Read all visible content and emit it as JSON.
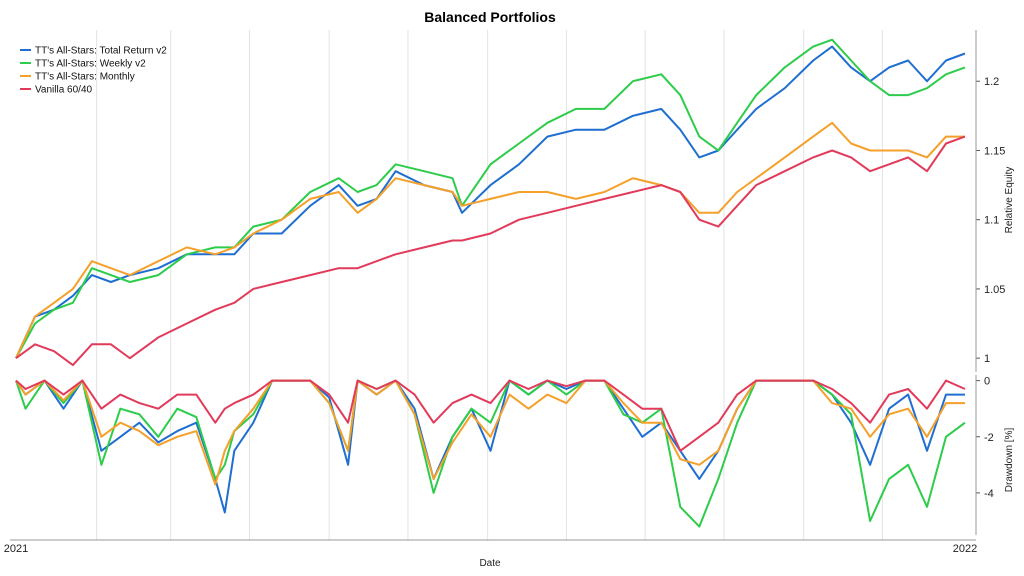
{
  "chart_data": [
    {
      "type": "line",
      "title": "Balanced Portfolios",
      "xlabel": "Date",
      "ylabel": "Relative Equity",
      "xlim": [
        "2021",
        "2022"
      ],
      "x_ticks": [
        "2021",
        "2022"
      ],
      "ylim": [
        0.99,
        1.237
      ],
      "y_ticks": [
        "1",
        "1.05",
        "1.1",
        "1.15",
        "1.2"
      ],
      "y_tick_values": [
        1,
        1.05,
        1.1,
        1.15,
        1.2
      ],
      "legend_position": "top-left",
      "grid": "vertical",
      "series": [
        {
          "name": "TT's All-Stars: Total Return v2",
          "color": "#1f6fd1",
          "x": [
            0,
            0.02,
            0.04,
            0.06,
            0.08,
            0.1,
            0.12,
            0.15,
            0.18,
            0.21,
            0.23,
            0.25,
            0.28,
            0.31,
            0.34,
            0.36,
            0.38,
            0.4,
            0.43,
            0.46,
            0.47,
            0.5,
            0.53,
            0.56,
            0.59,
            0.62,
            0.65,
            0.68,
            0.7,
            0.72,
            0.74,
            0.76,
            0.78,
            0.81,
            0.84,
            0.86,
            0.88,
            0.9,
            0.92,
            0.94,
            0.96,
            0.98,
            1
          ],
          "y": [
            1.0,
            1.03,
            1.035,
            1.045,
            1.06,
            1.055,
            1.06,
            1.065,
            1.075,
            1.075,
            1.075,
            1.09,
            1.09,
            1.11,
            1.125,
            1.11,
            1.115,
            1.135,
            1.125,
            1.12,
            1.105,
            1.125,
            1.14,
            1.16,
            1.165,
            1.165,
            1.175,
            1.18,
            1.165,
            1.145,
            1.15,
            1.165,
            1.18,
            1.195,
            1.215,
            1.225,
            1.21,
            1.2,
            1.21,
            1.215,
            1.2,
            1.215,
            1.22
          ]
        },
        {
          "name": "TT's All-Stars: Weekly v2",
          "color": "#2dcc4a",
          "x": [
            0,
            0.02,
            0.04,
            0.06,
            0.08,
            0.1,
            0.12,
            0.15,
            0.18,
            0.21,
            0.23,
            0.25,
            0.28,
            0.31,
            0.34,
            0.36,
            0.38,
            0.4,
            0.43,
            0.46,
            0.47,
            0.5,
            0.53,
            0.56,
            0.59,
            0.62,
            0.65,
            0.68,
            0.7,
            0.72,
            0.74,
            0.76,
            0.78,
            0.81,
            0.84,
            0.86,
            0.88,
            0.9,
            0.92,
            0.94,
            0.96,
            0.98,
            1
          ],
          "y": [
            1.0,
            1.025,
            1.035,
            1.04,
            1.065,
            1.06,
            1.055,
            1.06,
            1.075,
            1.08,
            1.08,
            1.095,
            1.1,
            1.12,
            1.13,
            1.12,
            1.125,
            1.14,
            1.135,
            1.13,
            1.11,
            1.14,
            1.155,
            1.17,
            1.18,
            1.18,
            1.2,
            1.205,
            1.19,
            1.16,
            1.15,
            1.17,
            1.19,
            1.21,
            1.225,
            1.23,
            1.215,
            1.2,
            1.19,
            1.19,
            1.195,
            1.205,
            1.21
          ]
        },
        {
          "name": "TT's All-Stars: Monthly",
          "color": "#f5a02a",
          "x": [
            0,
            0.02,
            0.04,
            0.06,
            0.08,
            0.1,
            0.12,
            0.15,
            0.18,
            0.21,
            0.23,
            0.25,
            0.28,
            0.31,
            0.34,
            0.36,
            0.38,
            0.4,
            0.43,
            0.46,
            0.47,
            0.5,
            0.53,
            0.56,
            0.59,
            0.62,
            0.65,
            0.68,
            0.7,
            0.72,
            0.74,
            0.76,
            0.78,
            0.81,
            0.84,
            0.86,
            0.88,
            0.9,
            0.92,
            0.94,
            0.96,
            0.98,
            1
          ],
          "y": [
            1.0,
            1.03,
            1.04,
            1.05,
            1.07,
            1.065,
            1.06,
            1.07,
            1.08,
            1.075,
            1.08,
            1.09,
            1.1,
            1.115,
            1.12,
            1.105,
            1.115,
            1.13,
            1.125,
            1.12,
            1.11,
            1.115,
            1.12,
            1.12,
            1.115,
            1.12,
            1.13,
            1.125,
            1.12,
            1.105,
            1.105,
            1.12,
            1.13,
            1.145,
            1.16,
            1.17,
            1.155,
            1.15,
            1.15,
            1.15,
            1.145,
            1.16,
            1.16
          ]
        },
        {
          "name": "Vanilla 60/40",
          "color": "#e23a5a",
          "x": [
            0,
            0.02,
            0.04,
            0.06,
            0.08,
            0.1,
            0.12,
            0.15,
            0.18,
            0.21,
            0.23,
            0.25,
            0.28,
            0.31,
            0.34,
            0.36,
            0.38,
            0.4,
            0.43,
            0.46,
            0.47,
            0.5,
            0.53,
            0.56,
            0.59,
            0.62,
            0.65,
            0.68,
            0.7,
            0.72,
            0.74,
            0.76,
            0.78,
            0.81,
            0.84,
            0.86,
            0.88,
            0.9,
            0.92,
            0.94,
            0.96,
            0.98,
            1
          ],
          "y": [
            1.0,
            1.01,
            1.005,
            0.995,
            1.01,
            1.01,
            1.0,
            1.015,
            1.025,
            1.035,
            1.04,
            1.05,
            1.055,
            1.06,
            1.065,
            1.065,
            1.07,
            1.075,
            1.08,
            1.085,
            1.085,
            1.09,
            1.1,
            1.105,
            1.11,
            1.115,
            1.12,
            1.125,
            1.12,
            1.1,
            1.095,
            1.11,
            1.125,
            1.135,
            1.145,
            1.15,
            1.145,
            1.135,
            1.14,
            1.145,
            1.135,
            1.155,
            1.16
          ]
        }
      ]
    },
    {
      "type": "line",
      "xlabel": "Date",
      "ylabel": "Drawdown [%]",
      "xlim": [
        "2021",
        "2022"
      ],
      "ylim": [
        -5.5,
        0.2
      ],
      "y_ticks": [
        "0",
        "-2",
        "-4"
      ],
      "y_tick_values": [
        0,
        -2,
        -4
      ],
      "grid": "vertical",
      "series": [
        {
          "name": "TT's All-Stars: Total Return v2",
          "color": "#1f6fd1",
          "x": [
            0,
            0.01,
            0.03,
            0.05,
            0.07,
            0.09,
            0.11,
            0.13,
            0.15,
            0.17,
            0.19,
            0.21,
            0.22,
            0.23,
            0.25,
            0.27,
            0.29,
            0.31,
            0.33,
            0.35,
            0.36,
            0.38,
            0.4,
            0.42,
            0.44,
            0.46,
            0.48,
            0.5,
            0.52,
            0.54,
            0.56,
            0.58,
            0.6,
            0.62,
            0.64,
            0.66,
            0.68,
            0.7,
            0.72,
            0.74,
            0.76,
            0.78,
            0.8,
            0.82,
            0.84,
            0.86,
            0.88,
            0.9,
            0.92,
            0.94,
            0.96,
            0.98,
            1
          ],
          "y": [
            0,
            -0.5,
            0,
            -1.0,
            0,
            -2.5,
            -2.0,
            -1.5,
            -2.2,
            -1.8,
            -1.5,
            -3.5,
            -4.7,
            -2.5,
            -1.5,
            0,
            0,
            0,
            -0.6,
            -3.0,
            0,
            -0.5,
            0,
            -1.0,
            -3.5,
            -2.0,
            -1.0,
            -2.5,
            0,
            -0.5,
            0,
            -0.3,
            0,
            0,
            -1.0,
            -2.0,
            -1.5,
            -2.5,
            -3.5,
            -2.5,
            -1.0,
            0,
            0,
            0,
            0,
            -0.5,
            -1.5,
            -3.0,
            -1.0,
            -0.5,
            -2.5,
            -0.5,
            -0.5
          ]
        },
        {
          "name": "TT's All-Stars: Weekly v2",
          "color": "#2dcc4a",
          "x": [
            0,
            0.01,
            0.03,
            0.05,
            0.07,
            0.09,
            0.11,
            0.13,
            0.15,
            0.17,
            0.19,
            0.21,
            0.22,
            0.23,
            0.25,
            0.27,
            0.29,
            0.31,
            0.33,
            0.35,
            0.36,
            0.38,
            0.4,
            0.42,
            0.44,
            0.46,
            0.48,
            0.5,
            0.52,
            0.54,
            0.56,
            0.58,
            0.6,
            0.62,
            0.64,
            0.66,
            0.68,
            0.7,
            0.72,
            0.74,
            0.76,
            0.78,
            0.8,
            0.82,
            0.84,
            0.86,
            0.88,
            0.9,
            0.92,
            0.94,
            0.96,
            0.98,
            1
          ],
          "y": [
            0,
            -1.0,
            0,
            -0.8,
            0,
            -3.0,
            -1.0,
            -1.2,
            -2.0,
            -1.0,
            -1.3,
            -3.5,
            -3.0,
            -1.8,
            -1.2,
            0,
            0,
            0,
            -0.8,
            -2.5,
            0,
            -0.3,
            0,
            -1.2,
            -4.0,
            -2.0,
            -1.0,
            -1.5,
            0,
            -0.5,
            0,
            -0.5,
            0,
            0,
            -1.2,
            -1.5,
            -1.0,
            -4.5,
            -5.2,
            -3.5,
            -1.5,
            0,
            0,
            0,
            0,
            -0.5,
            -1.2,
            -5.0,
            -3.5,
            -3.0,
            -4.5,
            -2.0,
            -1.5
          ]
        },
        {
          "name": "TT's All-Stars: Monthly",
          "color": "#f5a02a",
          "x": [
            0,
            0.01,
            0.03,
            0.05,
            0.07,
            0.09,
            0.11,
            0.13,
            0.15,
            0.17,
            0.19,
            0.21,
            0.22,
            0.23,
            0.25,
            0.27,
            0.29,
            0.31,
            0.33,
            0.35,
            0.36,
            0.38,
            0.4,
            0.42,
            0.44,
            0.46,
            0.48,
            0.5,
            0.52,
            0.54,
            0.56,
            0.58,
            0.6,
            0.62,
            0.64,
            0.66,
            0.68,
            0.7,
            0.72,
            0.74,
            0.76,
            0.78,
            0.8,
            0.82,
            0.84,
            0.86,
            0.88,
            0.9,
            0.92,
            0.94,
            0.96,
            0.98,
            1
          ],
          "y": [
            0,
            -0.5,
            0,
            -0.7,
            0,
            -2.0,
            -1.5,
            -1.8,
            -2.3,
            -2.0,
            -1.8,
            -3.7,
            -2.5,
            -1.8,
            -1.0,
            0,
            0,
            0,
            -0.8,
            -2.5,
            0,
            -0.5,
            0,
            -1.2,
            -3.5,
            -2.2,
            -1.2,
            -2.0,
            -0.5,
            -1.0,
            -0.5,
            -0.8,
            0,
            0,
            -0.8,
            -1.5,
            -1.5,
            -2.8,
            -3.0,
            -2.5,
            -1.0,
            0,
            0,
            0,
            0,
            -0.8,
            -1.0,
            -2.0,
            -1.2,
            -1.0,
            -2.0,
            -0.8,
            -0.8
          ]
        },
        {
          "name": "Vanilla 60/40",
          "color": "#e23a5a",
          "x": [
            0,
            0.01,
            0.03,
            0.05,
            0.07,
            0.09,
            0.11,
            0.13,
            0.15,
            0.17,
            0.19,
            0.21,
            0.22,
            0.23,
            0.25,
            0.27,
            0.29,
            0.31,
            0.33,
            0.35,
            0.36,
            0.38,
            0.4,
            0.42,
            0.44,
            0.46,
            0.48,
            0.5,
            0.52,
            0.54,
            0.56,
            0.58,
            0.6,
            0.62,
            0.64,
            0.66,
            0.68,
            0.7,
            0.72,
            0.74,
            0.76,
            0.78,
            0.8,
            0.82,
            0.84,
            0.86,
            0.88,
            0.9,
            0.92,
            0.94,
            0.96,
            0.98,
            1
          ],
          "y": [
            0,
            -0.3,
            0,
            -0.5,
            0,
            -1.0,
            -0.5,
            -0.8,
            -1.0,
            -0.5,
            -0.5,
            -1.5,
            -1.0,
            -0.8,
            -0.5,
            0,
            0,
            0,
            -0.5,
            -1.5,
            0,
            -0.3,
            0,
            -0.5,
            -1.5,
            -0.8,
            -0.5,
            -0.8,
            0,
            -0.3,
            0,
            -0.2,
            0,
            0,
            -0.5,
            -1.0,
            -1.0,
            -2.5,
            -2.0,
            -1.5,
            -0.5,
            0,
            0,
            0,
            0,
            -0.3,
            -0.8,
            -1.5,
            -0.5,
            -0.3,
            -1.0,
            0,
            -0.3
          ]
        }
      ]
    }
  ]
}
